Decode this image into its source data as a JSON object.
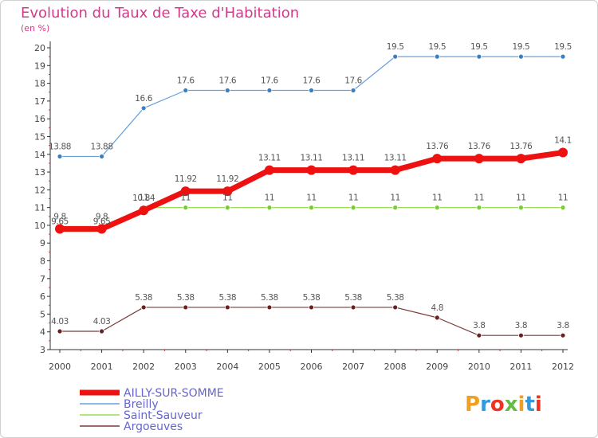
{
  "chart_data": {
    "type": "line",
    "title": "Evolution du Taux de Taxe d'Habitation",
    "subtitle": "(en %)",
    "x": [
      "2000",
      "2001",
      "2002",
      "2003",
      "2004",
      "2005",
      "2006",
      "2007",
      "2008",
      "2009",
      "2010",
      "2011",
      "2012"
    ],
    "ylim": [
      3,
      20
    ],
    "yticks": [
      3,
      4,
      5,
      6,
      7,
      8,
      9,
      10,
      11,
      12,
      13,
      14,
      15,
      16,
      17,
      18,
      19,
      20
    ],
    "grid": false,
    "legend_position": "bottom-left",
    "series": [
      {
        "name": "Breilly",
        "color": "#6aa0d8",
        "point_color": "#3a7fc0",
        "line_width": 1.2,
        "values": [
          13.88,
          13.88,
          16.6,
          17.6,
          17.6,
          17.6,
          17.6,
          17.6,
          19.5,
          19.5,
          19.5,
          19.5,
          19.5
        ],
        "labels": [
          "13.88",
          "13.88",
          "16.6",
          "17.6",
          "17.6",
          "17.6",
          "17.6",
          "17.6",
          "19.5",
          "19.5",
          "19.5",
          "19.5",
          "19.5"
        ]
      },
      {
        "name": "Saint-Sauveur",
        "color": "#99dd55",
        "point_color": "#77cc33",
        "line_width": 1.2,
        "values": [
          9.65,
          9.65,
          11,
          11,
          11,
          11,
          11,
          11,
          11,
          11,
          11,
          11,
          11
        ],
        "labels": [
          "9.65",
          "9.65",
          "11",
          "11",
          "11",
          "11",
          "11",
          "11",
          "11",
          "11",
          "11",
          "11",
          "11"
        ]
      },
      {
        "name": "Argoeuves",
        "color": "#7a3a3a",
        "point_color": "#6a2020",
        "line_width": 1.2,
        "values": [
          4.03,
          4.03,
          5.38,
          5.38,
          5.38,
          5.38,
          5.38,
          5.38,
          5.38,
          4.8,
          3.8,
          3.8,
          3.8
        ],
        "labels": [
          "4.03",
          "4.03",
          "5.38",
          "5.38",
          "5.38",
          "5.38",
          "5.38",
          "5.38",
          "5.38",
          "4.8",
          "3.8",
          "3.8",
          "3.8"
        ]
      },
      {
        "name": "AILLY-SUR-SOMME",
        "color": "#ee1111",
        "point_color": "#ee1111",
        "line_width": 7,
        "values": [
          9.8,
          9.8,
          10.84,
          11.92,
          11.92,
          13.11,
          13.11,
          13.11,
          13.11,
          13.76,
          13.76,
          13.76,
          14.1
        ],
        "labels": [
          "9.8",
          "9.8",
          "10.84",
          "11.92",
          "11.92",
          "13.11",
          "13.11",
          "13.11",
          "13.11",
          "13.76",
          "13.76",
          "13.76",
          "14.1"
        ]
      }
    ],
    "legend": [
      "AILLY-SUR-SOMME",
      "Breilly",
      "Saint-Sauveur",
      "Argoeuves"
    ]
  },
  "watermark": {
    "text": "Proxiti",
    "colors": [
      "#f0a020",
      "#3399dd",
      "#ee3322",
      "#66bb44"
    ]
  }
}
